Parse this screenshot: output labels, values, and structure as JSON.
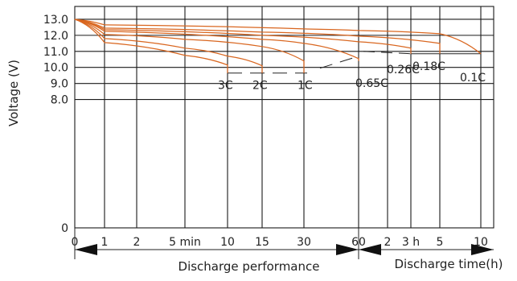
{
  "chart_data": {
    "type": "line",
    "title": "",
    "ylabel": "Voltage (V)",
    "ylim": [
      0,
      13.8
    ],
    "yticks": [
      "0",
      "8.0",
      "9.0",
      "10.0",
      "11.0",
      "12.0",
      "13.0"
    ],
    "ytick_values": [
      0,
      8.0,
      9.0,
      10.0,
      11.0,
      12.0,
      13.0
    ],
    "xticks": [
      "0",
      "1",
      "2",
      "5 min",
      "10",
      "15",
      "30",
      "60",
      "2",
      "3  h",
      "5",
      "10"
    ],
    "x_sections": [
      {
        "label": "Discharge performance",
        "unit": "min"
      },
      {
        "label": "Discharge time(h)",
        "unit": "h"
      }
    ],
    "grid": true,
    "line_color": "#d9661f",
    "series": [
      {
        "name": "3C",
        "points": [
          [
            "0",
            13.0
          ],
          [
            "1",
            11.55
          ],
          [
            "5 min",
            10.75
          ],
          [
            "10",
            10.15
          ],
          [
            "10",
            9.65
          ]
        ]
      },
      {
        "name": "2C",
        "points": [
          [
            "0",
            13.0
          ],
          [
            "1",
            11.8
          ],
          [
            "5 min",
            11.2
          ],
          [
            "10",
            10.7
          ],
          [
            "15",
            10.1
          ],
          [
            "15",
            9.65
          ]
        ]
      },
      {
        "name": "1C",
        "points": [
          [
            "0",
            13.0
          ],
          [
            "1",
            12.05
          ],
          [
            "5 min",
            11.75
          ],
          [
            "15",
            11.3
          ],
          [
            "30",
            10.4
          ],
          [
            "30",
            9.65
          ]
        ]
      },
      {
        "name": "0.65C",
        "points": [
          [
            "0",
            13.0
          ],
          [
            "1",
            12.25
          ],
          [
            "15",
            11.75
          ],
          [
            "30",
            11.5
          ],
          [
            "60",
            10.55
          ],
          [
            "60",
            10.4
          ]
        ]
      },
      {
        "name": "0.26C",
        "points": [
          [
            "0",
            13.0
          ],
          [
            "1",
            12.35
          ],
          [
            "15",
            12.0
          ],
          [
            "60",
            11.6
          ],
          [
            "3  h",
            11.2
          ],
          [
            "3  h",
            10.85
          ]
        ]
      },
      {
        "name": "0.18C",
        "points": [
          [
            "0",
            13.0
          ],
          [
            "1",
            12.45
          ],
          [
            "15",
            12.2
          ],
          [
            "60",
            11.95
          ],
          [
            "5",
            11.5
          ],
          [
            "5",
            10.85
          ]
        ]
      },
      {
        "name": "0.1C",
        "points": [
          [
            "0",
            13.0
          ],
          [
            "1",
            12.65
          ],
          [
            "30",
            12.4
          ],
          [
            "60",
            12.3
          ],
          [
            "5",
            12.1
          ],
          [
            "10",
            10.85
          ]
        ]
      }
    ]
  }
}
